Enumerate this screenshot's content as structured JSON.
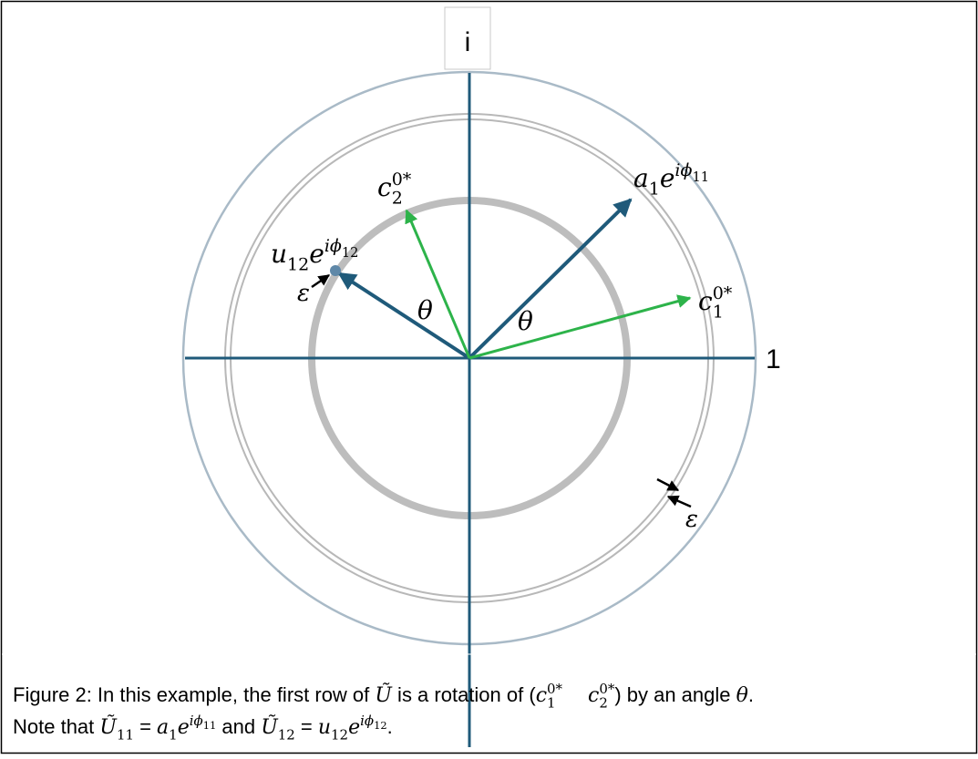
{
  "diagram": {
    "axis_labels": {
      "imaginary": "i",
      "real": "1"
    },
    "labels": {
      "a1": [
        {
          "t": "a",
          "s": "i"
        },
        {
          "t": "1",
          "s": "sub"
        },
        {
          "t": "e",
          "s": "i"
        },
        {
          "t": "iϕ",
          "s": "sup"
        },
        {
          "t": "11",
          "s": "ss"
        }
      ],
      "c1": [
        {
          "t": "c",
          "s": "i"
        },
        {
          "t": "1",
          "s": "sub"
        },
        {
          "t": "0*",
          "s": "supb"
        }
      ],
      "c2": [
        {
          "t": "c",
          "s": "i"
        },
        {
          "t": "2",
          "s": "sub"
        },
        {
          "t": "0*",
          "s": "supb"
        }
      ],
      "u12": [
        {
          "t": "u",
          "s": "i"
        },
        {
          "t": "12",
          "s": "sub"
        },
        {
          "t": "e",
          "s": "i"
        },
        {
          "t": "iϕ",
          "s": "sup"
        },
        {
          "t": "12",
          "s": "ss"
        }
      ],
      "theta_left": [
        {
          "t": "θ",
          "s": "i"
        }
      ],
      "theta_right": [
        {
          "t": "θ",
          "s": "i"
        }
      ],
      "epsilon_left": [
        {
          "t": "ε",
          "s": "i"
        }
      ],
      "epsilon_right": [
        {
          "t": "ε",
          "s": "i"
        }
      ]
    }
  },
  "caption": [
    [
      {
        "t": "Figure 2: In this example, the first row of ",
        "s": "n"
      },
      {
        "t": "Ũ",
        "s": "i"
      },
      {
        "t": " is a rotation of (",
        "s": "n"
      },
      {
        "t": "c",
        "s": "i"
      },
      {
        "t": "1",
        "s": "sub"
      },
      {
        "t": "0*",
        "s": "supb"
      },
      {
        "t": "    c",
        "s": "i"
      },
      {
        "t": "2",
        "s": "sub"
      },
      {
        "t": "0*",
        "s": "supb"
      },
      {
        "t": ") by an angle ",
        "s": "n"
      },
      {
        "t": "θ",
        "s": "i"
      },
      {
        "t": ".",
        "s": "n"
      }
    ],
    [
      {
        "t": "Note that ",
        "s": "n"
      },
      {
        "t": "Ũ",
        "s": "i"
      },
      {
        "t": "11",
        "s": "sub"
      },
      {
        "t": " = ",
        "s": "n"
      },
      {
        "t": "a",
        "s": "i"
      },
      {
        "t": "1",
        "s": "sub"
      },
      {
        "t": "e",
        "s": "i"
      },
      {
        "t": "iϕ",
        "s": "sup"
      },
      {
        "t": "11",
        "s": "ss"
      },
      {
        "t": " and ",
        "s": "n"
      },
      {
        "t": "Ũ",
        "s": "i"
      },
      {
        "t": "12",
        "s": "sub"
      },
      {
        "t": " = ",
        "s": "n"
      },
      {
        "t": "u",
        "s": "i"
      },
      {
        "t": "12",
        "s": "sub"
      },
      {
        "t": "e",
        "s": "i"
      },
      {
        "t": "iϕ",
        "s": "sup"
      },
      {
        "t": "12",
        "s": "ss"
      },
      {
        "t": ".",
        "s": "n"
      }
    ]
  ]
}
